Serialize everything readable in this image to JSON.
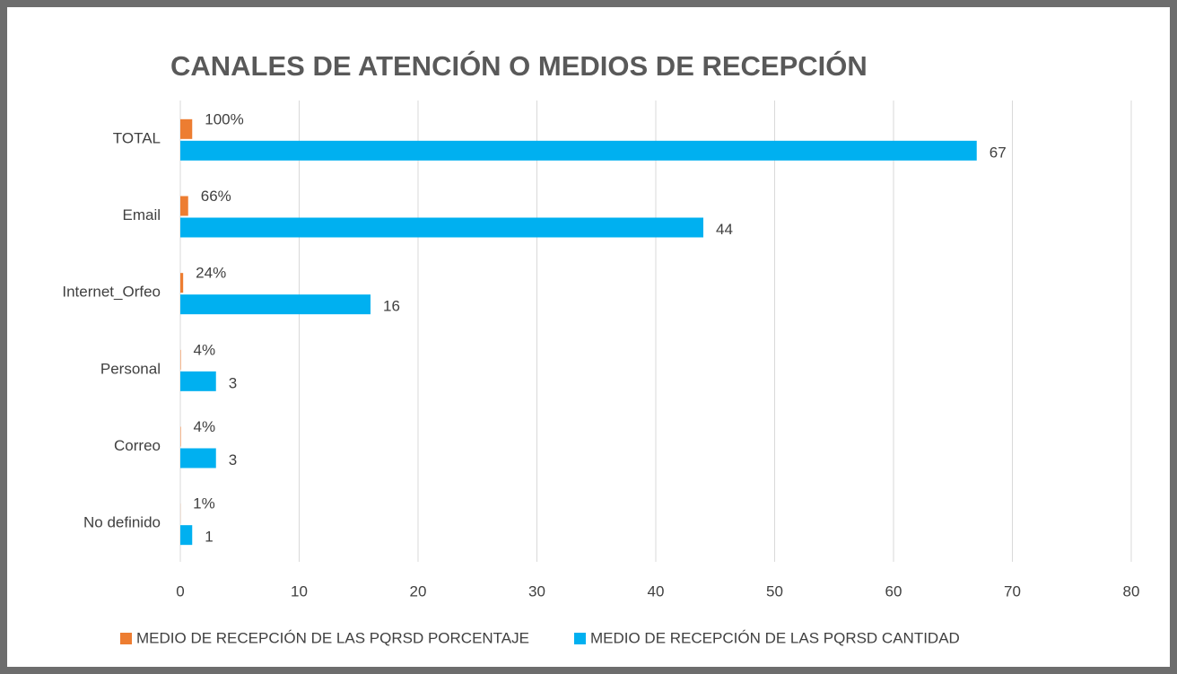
{
  "chart_data": {
    "type": "hbar",
    "title": "CANALES DE ATENCIÓN O MEDIOS DE RECEPCIÓN",
    "categories": [
      "TOTAL",
      "Email",
      "Internet_Orfeo",
      "Personal",
      "Correo",
      "No definido"
    ],
    "series": [
      {
        "name": "MEDIO DE RECEPCIÓN DE LAS PQRSD PORCENTAJE",
        "color": "#ed7d31",
        "values": [
          1,
          0.66,
          0.24,
          0.04,
          0.04,
          0.01
        ],
        "value_labels": [
          "100%",
          "66%",
          "24%",
          "4%",
          "4%",
          "1%"
        ]
      },
      {
        "name": "MEDIO DE RECEPCIÓN DE LAS PQRSD CANTIDAD",
        "color": "#00b0f0",
        "values": [
          67,
          44,
          16,
          3,
          3,
          1
        ]
      }
    ],
    "xlim": [
      0,
      80
    ],
    "xticks": [
      0,
      10,
      20,
      30,
      40,
      50,
      60,
      70,
      80
    ],
    "grid": true
  }
}
